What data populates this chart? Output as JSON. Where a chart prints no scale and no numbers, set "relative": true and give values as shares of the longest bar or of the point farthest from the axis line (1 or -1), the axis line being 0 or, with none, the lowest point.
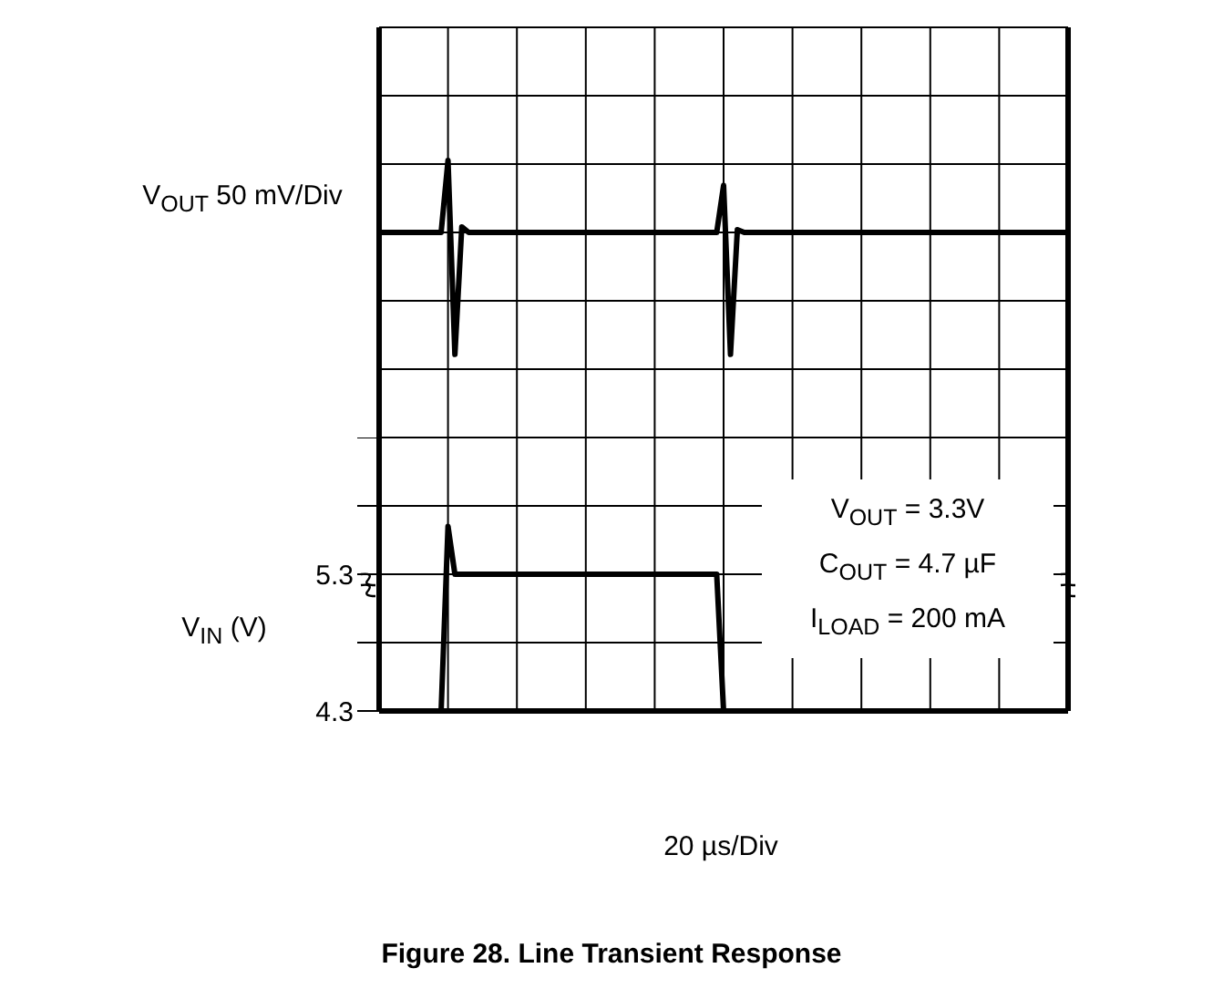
{
  "chart_data": [
    {
      "type": "line",
      "relative": true,
      "ylabel": "V$_{OUT}$ 50 mV/Div",
      "grid": true,
      "marker": "none",
      "line_style": "solid",
      "categories": [
        null,
        null,
        null,
        null,
        null,
        null,
        null,
        null,
        null,
        null,
        null,
        null,
        null,
        null,
        null,
        null,
        null,
        null,
        null,
        null,
        null,
        null,
        null,
        null,
        null,
        null,
        null,
        null,
        null,
        null,
        null,
        null,
        null,
        null,
        null,
        null,
        null,
        null,
        null,
        null,
        null,
        null,
        null,
        null,
        null,
        null,
        null,
        null,
        null,
        null,
        null,
        null,
        null,
        null,
        null,
        null,
        null,
        null,
        null,
        null,
        null,
        null,
        null,
        null,
        null,
        null,
        null,
        null,
        null,
        null,
        null,
        null,
        null,
        null,
        null,
        null,
        null,
        null,
        null,
        null,
        null,
        null,
        null,
        null,
        null,
        null,
        null,
        null,
        null,
        null,
        null,
        null,
        null,
        null,
        null,
        null,
        null,
        null,
        null,
        null,
        null
      ],
      "series": [
        {
          "color": "#000000",
          "values": [
            0.74,
            0.74,
            0.74,
            0.74,
            0.74,
            0.74,
            0.74,
            0.74,
            0.74,
            0.74,
            1,
            0.3,
            0.76,
            0.74,
            0.74,
            0.74,
            0.74,
            0.74,
            0.74,
            0.74,
            0.74,
            0.74,
            0.74,
            0.74,
            0.74,
            0.74,
            0.74,
            0.74,
            0.74,
            0.74,
            0.74,
            0.74,
            0.74,
            0.74,
            0.74,
            0.74,
            0.74,
            0.74,
            0.74,
            0.74,
            0.74,
            0.74,
            0.74,
            0.74,
            0.74,
            0.74,
            0.74,
            0.74,
            0.74,
            0.74,
            0.91,
            0.3,
            0.75,
            0.74,
            0.74,
            0.74,
            0.74,
            0.74,
            0.74,
            0.74,
            0.74,
            0.74,
            0.74,
            0.74,
            0.74,
            0.74,
            0.74,
            0.74,
            0.74,
            0.74,
            0.74,
            0.74,
            0.74,
            0.74,
            0.74,
            0.74,
            0.74,
            0.74,
            0.74,
            0.74,
            0.74,
            0.74,
            0.74,
            0.74,
            0.74,
            0.74,
            0.74,
            0.74,
            0.74,
            0.74,
            0.74,
            0.74,
            0.74,
            0.74,
            0.74,
            0.74,
            0.74,
            0.74,
            0.74,
            0.74,
            0.74
          ]
        }
      ]
    },
    {
      "type": "line",
      "title": "Figure 28. Line Transient Response",
      "xlabel": "20 µs/Div",
      "ylabel": "V$_{IN}$ (V)",
      "grid": true,
      "marker": "none",
      "line_style": "solid",
      "annotations": [
        "V$_{OUT}$ = 3.3V",
        "C$_{OUT}$ = 4.7 µF",
        "I$_{LOAD}$ = 200 mA"
      ],
      "ylim": [
        4.3,
        6.3
      ],
      "yticks": [
        4.3,
        {
          "value": 4.8,
          "label": null
        },
        5.3,
        {
          "value": 5.8,
          "label": null
        },
        {
          "value": 6.3,
          "label": null
        }
      ],
      "categories": [
        null,
        null,
        null,
        null,
        null,
        null,
        null,
        null,
        null,
        null,
        null,
        null,
        null,
        null,
        null,
        null,
        null,
        null,
        null,
        null,
        null,
        null,
        null,
        null,
        null,
        null,
        null,
        null,
        null,
        null,
        null,
        null,
        null,
        null,
        null,
        null,
        null,
        null,
        null,
        null,
        null,
        null,
        null,
        null,
        null,
        null,
        null,
        null,
        null,
        null,
        null,
        null,
        null,
        null,
        null,
        null,
        null,
        null,
        null,
        null,
        null,
        null,
        null,
        null,
        null,
        null,
        null,
        null,
        null,
        null,
        null,
        null,
        null,
        null,
        null,
        null,
        null,
        null,
        null,
        null,
        null,
        null,
        null,
        null,
        null,
        null,
        null,
        null,
        null,
        null,
        null,
        null,
        null,
        null,
        null,
        null,
        null,
        null,
        null,
        null,
        null
      ],
      "series": [
        {
          "color": "#000000",
          "values": [
            4.3,
            4.3,
            4.3,
            4.3,
            4.3,
            4.3,
            4.3,
            4.3,
            4.3,
            4.3,
            5.65,
            5.3,
            5.3,
            5.3,
            5.3,
            5.3,
            5.3,
            5.3,
            5.3,
            5.3,
            5.3,
            5.3,
            5.3,
            5.3,
            5.3,
            5.3,
            5.3,
            5.3,
            5.3,
            5.3,
            5.3,
            5.3,
            5.3,
            5.3,
            5.3,
            5.3,
            5.3,
            5.3,
            5.3,
            5.3,
            5.3,
            5.3,
            5.3,
            5.3,
            5.3,
            5.3,
            5.3,
            5.3,
            5.3,
            5.3,
            4.3,
            4.3,
            4.3,
            4.3,
            4.3,
            4.3,
            4.3,
            4.3,
            4.3,
            4.3,
            4.3,
            4.3,
            4.3,
            4.3,
            4.3,
            4.3,
            4.3,
            4.3,
            4.3,
            4.3,
            4.3,
            4.3,
            4.3,
            4.3,
            4.3,
            4.3,
            4.3,
            4.3,
            4.3,
            4.3,
            4.3,
            4.3,
            4.3,
            4.3,
            4.3,
            4.3,
            4.3,
            4.3,
            4.3,
            4.3,
            4.3,
            4.3,
            4.3,
            4.3,
            4.3,
            4.3,
            4.3,
            4.3,
            4.3,
            4.3,
            4.3
          ]
        }
      ]
    }
  ]
}
